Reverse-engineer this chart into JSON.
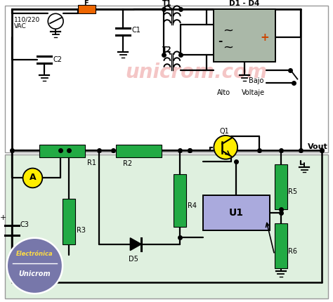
{
  "bg_color": "#ffffff",
  "fig_width": 4.74,
  "fig_height": 4.3,
  "dpi": 100,
  "watermark_text": "unicrom.com",
  "watermark_color": "#dd4444",
  "watermark_alpha": 0.3,
  "component_green": "#22aa44",
  "component_gray": "#aab8a8",
  "component_purple": "#aaaadd",
  "component_yellow": "#ffee00",
  "component_orange": "#ee6600",
  "logo_bg": "#7777aa",
  "logo_text1": "Electrónica",
  "logo_text2": "Unicrom",
  "top_border_color": "#555555",
  "bottom_bg": "#dff0df"
}
